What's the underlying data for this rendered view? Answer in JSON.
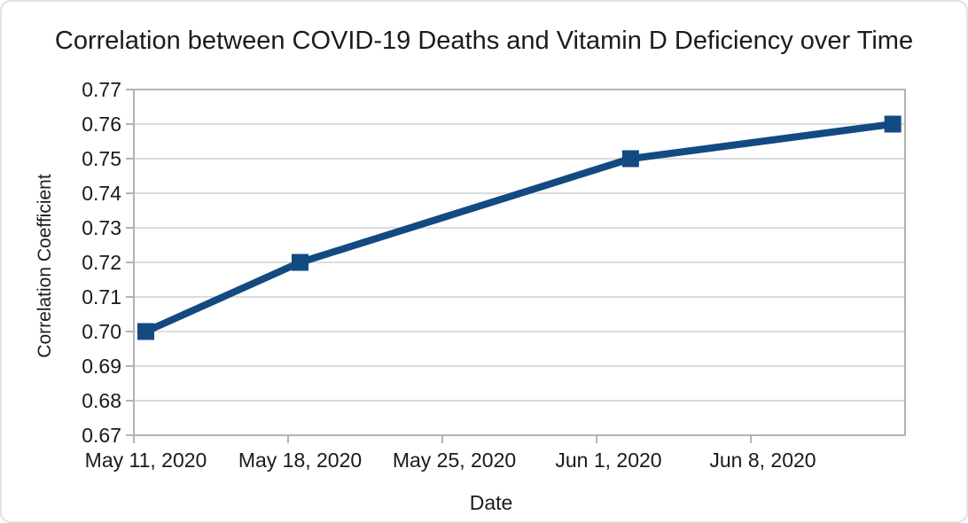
{
  "chart_data": {
    "type": "line",
    "title": "Correlation between COVID-19 Deaths and Vitamin D Deficiency over Time",
    "xlabel": "Date",
    "ylabel": "Correlation Coefficient",
    "legend": "none",
    "grid": "horizontal",
    "marker": "square",
    "ylim": [
      0.67,
      0.77
    ],
    "y_tick_step": 0.01,
    "y_tick_labels": [
      "0.77",
      "0.76",
      "0.75",
      "0.74",
      "0.73",
      "0.72",
      "0.71",
      "0.70",
      "0.69",
      "0.68",
      "0.67"
    ],
    "y_tick_values": [
      0.77,
      0.76,
      0.75,
      0.74,
      0.73,
      0.72,
      0.71,
      0.7,
      0.69,
      0.68,
      0.67
    ],
    "x_tick_labels": [
      "May 11, 2020",
      "May 18, 2020",
      "May 25, 2020",
      "Jun 1, 2020",
      "Jun 8, 2020"
    ],
    "x_tick_days": [
      0,
      7,
      14,
      21,
      28
    ],
    "x_range_days": [
      0,
      35
    ],
    "series": [
      {
        "name": "Correlation Coefficient",
        "points": [
          {
            "date": "May 11, 2020",
            "day": 0,
            "value": 0.7
          },
          {
            "date": "May 18, 2020",
            "day": 7,
            "value": 0.72
          },
          {
            "date": "Jun 2, 2020",
            "day": 22,
            "value": 0.75
          },
          {
            "date": "Jun 14, 2020",
            "day": 33.9,
            "value": 0.76
          }
        ]
      }
    ],
    "colors": {
      "series": "#134a81",
      "grid": "#dcdcdc",
      "axis": "#b3b3b3",
      "text": "#1a1a1a",
      "background": "#ffffff"
    }
  }
}
